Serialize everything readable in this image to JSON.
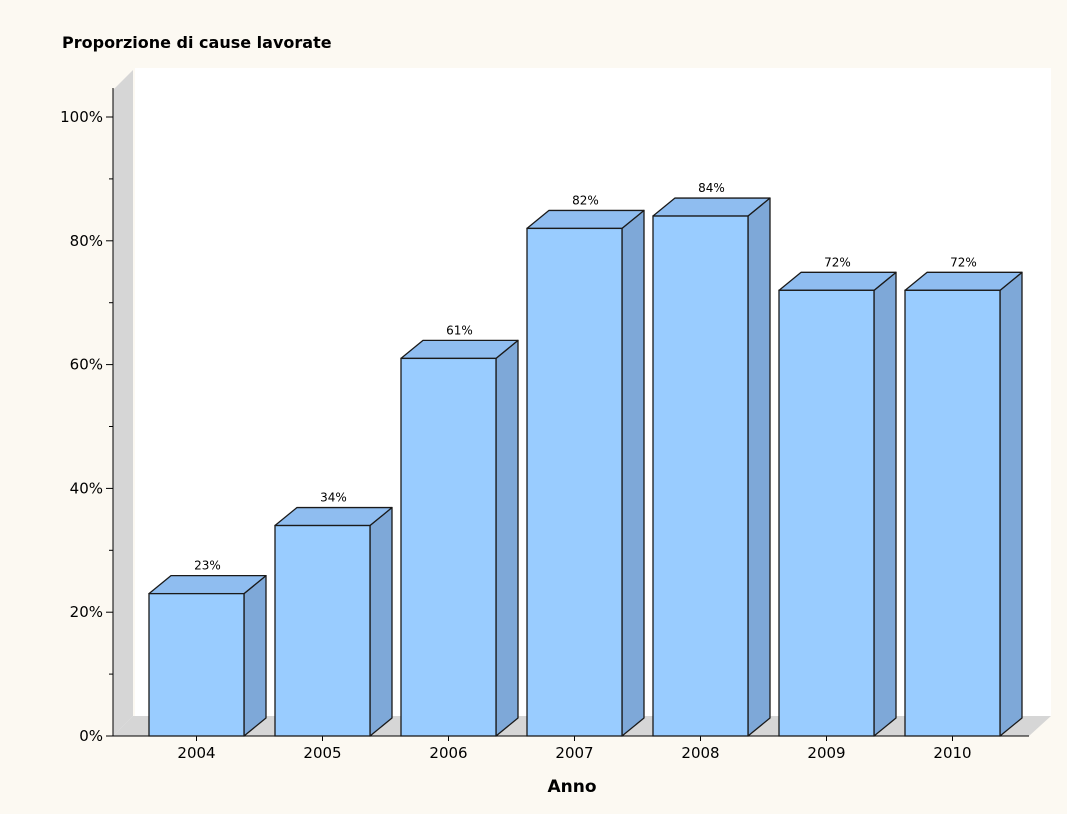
{
  "chart_data": {
    "type": "bar",
    "title": "Proporzione di cause lavorate",
    "xlabel": "Anno",
    "ylabel": "",
    "categories": [
      "2004",
      "2005",
      "2006",
      "2007",
      "2008",
      "2009",
      "2010"
    ],
    "values": [
      23,
      34,
      61,
      82,
      84,
      72,
      72
    ],
    "value_labels": [
      "23%",
      "34%",
      "61%",
      "82%",
      "84%",
      "72%",
      "72%"
    ],
    "ylim": [
      0,
      100
    ],
    "yticks": [
      0,
      20,
      40,
      60,
      80,
      100
    ],
    "ytick_labels": [
      "0%",
      "20%",
      "40%",
      "60%",
      "80%",
      "100%"
    ],
    "grid": false,
    "legend": "none",
    "style": "3d",
    "colors": {
      "bar_front": "#99ccff",
      "bar_top": "#8fbdf0",
      "bar_side": "#7ea8d8",
      "bar_stroke": "#1a1a1a",
      "plot_background": "#ffffff",
      "wall": "#d6d6d6",
      "page_background": "#fcf9f2"
    }
  }
}
